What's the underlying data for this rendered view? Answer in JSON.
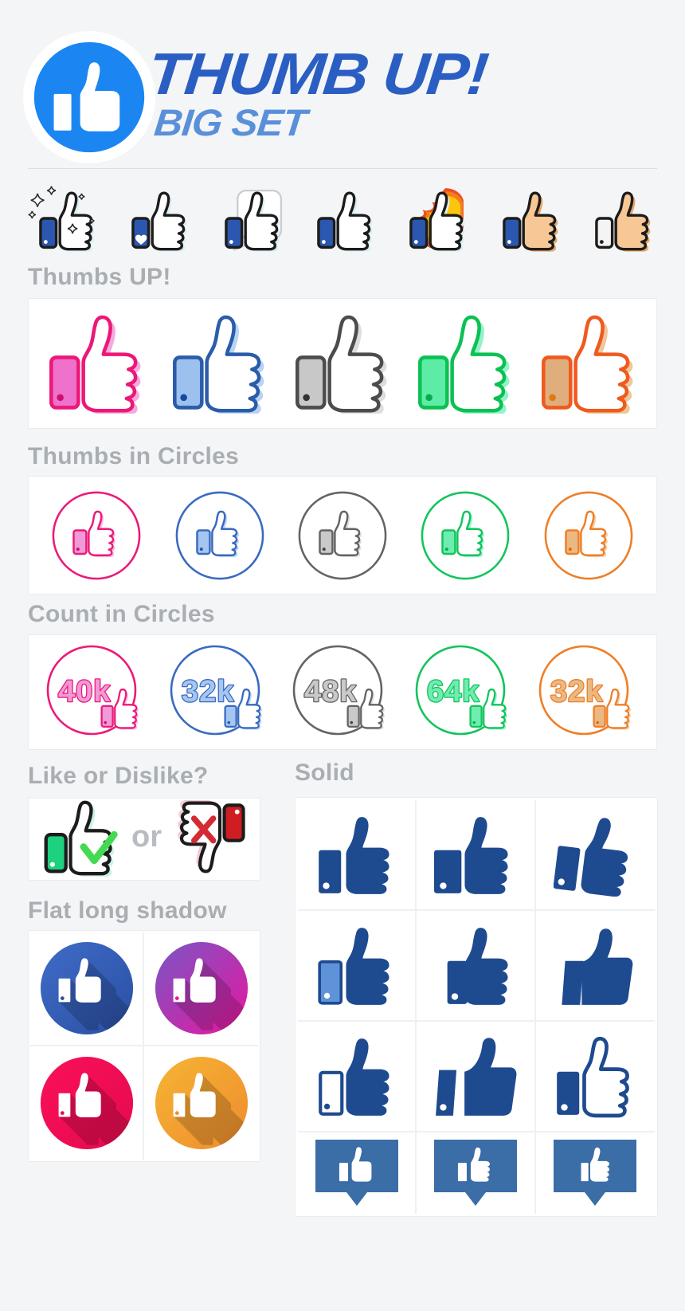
{
  "page": {
    "background": "#f4f5f6"
  },
  "header": {
    "title": "THUMB UP!",
    "subtitle": "BIG SET",
    "colors": {
      "logo_ring": "#ffffff",
      "logo_circle": "#1b86f2",
      "title": "#2b5ec3",
      "subtitle": "#5a90da"
    }
  },
  "style_teaser": {
    "items": [
      {
        "name": "sparkles-thumb"
      },
      {
        "name": "heart-cuff-thumb"
      },
      {
        "name": "speech-bubble-thumb"
      },
      {
        "name": "classic-thumb"
      },
      {
        "name": "fire-thumb"
      },
      {
        "name": "skin-blue-cuff-thumb"
      },
      {
        "name": "skin-white-cuff-thumb"
      }
    ],
    "colors": {
      "outline": "#1c1c1c",
      "hand": "#ffffff",
      "shade": "#d9eef3",
      "cuff_blue": "#2b57b0",
      "cuff_white": "#f4f4f4",
      "skin": "#f7c795",
      "skin_shade": "#e8a76c",
      "dot_light": "#ffffff",
      "dot_dark": "#222222",
      "fire_red": "#ee4e1e",
      "fire_orange": "#f57c1f",
      "fire_yellow": "#fdc60b",
      "speech_outline": "#c8cdd3",
      "sparkle_outline": "#2b2b2b"
    }
  },
  "sections": {
    "thumbs_up": {
      "title": "Thumbs UP!",
      "items": [
        {
          "name": "pink",
          "main": "#ec1878",
          "cuff": "#ee72cc",
          "dot": "#cf0f6f",
          "shade": "#f5aade"
        },
        {
          "name": "blue",
          "main": "#2a5caa",
          "cuff": "#9cc1ee",
          "dot": "#17489e",
          "shade": "#b8d4f4"
        },
        {
          "name": "gray",
          "main": "#4c4c4c",
          "cuff": "#c8c8c8",
          "dot": "#333333",
          "shade": "#dddddd"
        },
        {
          "name": "green",
          "main": "#0bc153",
          "cuff": "#5deca5",
          "dot": "#09aa49",
          "shade": "#93f2c8"
        },
        {
          "name": "orange",
          "main": "#ef5a1f",
          "cuff": "#e0ae7c",
          "dot": "#e27613",
          "shade": "#edc89c"
        }
      ]
    },
    "thumbs_in_circles": {
      "title": "Thumbs in Circles",
      "items": [
        {
          "name": "pink",
          "main": "#ec1a78",
          "cuff": "#f09ad8",
          "dot": "#cf0f6f",
          "shade": "#f5bce5"
        },
        {
          "name": "blue",
          "main": "#3a6ac0",
          "cuff": "#a5c6f0",
          "dot": "#2a55a8",
          "shade": "#bdd6f5"
        },
        {
          "name": "gray",
          "main": "#646464",
          "cuff": "#c9c9c9",
          "dot": "#444444",
          "shade": "#dedede"
        },
        {
          "name": "green",
          "main": "#12c45c",
          "cuff": "#6fedb1",
          "dot": "#0da94e",
          "shade": "#9cf4cf"
        },
        {
          "name": "orange",
          "main": "#ef7e27",
          "cuff": "#eab983",
          "dot": "#d96a14",
          "shade": "#f2d2a8"
        }
      ]
    },
    "count_in_circles": {
      "title": "Count in Circles",
      "items": [
        {
          "count": "40k",
          "name": "pink",
          "main": "#ec1a78",
          "cuff": "#f09ad8",
          "dot": "#cf0f6f",
          "shade": "#f5bce5"
        },
        {
          "count": "32k",
          "name": "blue",
          "main": "#3a6ac0",
          "cuff": "#a5c6f0",
          "dot": "#2a55a8",
          "shade": "#bdd6f5"
        },
        {
          "count": "48k",
          "name": "gray",
          "main": "#646464",
          "cuff": "#c9c9c9",
          "dot": "#444444",
          "shade": "#dedede"
        },
        {
          "count": "64k",
          "name": "green",
          "main": "#12c45c",
          "cuff": "#6fedb1",
          "dot": "#0da94e",
          "shade": "#9cf4cf"
        },
        {
          "count": "32k",
          "name": "orange",
          "main": "#ef7e27",
          "cuff": "#eab983",
          "dot": "#d96a14",
          "shade": "#f2d2a8"
        }
      ]
    },
    "like_or_dislike": {
      "title": "Like or Dislike?",
      "separator": "or",
      "like": {
        "cuff": "#1ed17e",
        "dot": "#ffffff",
        "check": "#43da52",
        "shade": "#c9f3e4"
      },
      "dislike": {
        "cuff": "#cf1d22",
        "dot": "#ffffff",
        "cross": "#d42b33",
        "shade": "#f3ccd3"
      }
    },
    "solid": {
      "title": "Solid",
      "color": "#1e4a8f",
      "light_cuff": "#5e93d9",
      "badge_color": "#3b6da7",
      "variants": [
        {
          "name": "classic"
        },
        {
          "name": "wide-cuff"
        },
        {
          "name": "tilted"
        },
        {
          "name": "light-cuff"
        },
        {
          "name": "merged"
        },
        {
          "name": "flat-angled"
        },
        {
          "name": "outline-cuff"
        },
        {
          "name": "flat-angled-dot"
        },
        {
          "name": "outline-hand"
        },
        {
          "name": "badge-smooth"
        },
        {
          "name": "badge-scalloped"
        },
        {
          "name": "badge-compact"
        }
      ]
    },
    "flat_long_shadow": {
      "title": "Flat long shadow",
      "items": [
        {
          "name": "blue",
          "from": "#3f6cc7",
          "to": "#2a4fa3"
        },
        {
          "name": "purple-magenta",
          "from": "#7857c5",
          "to": "#e8169f"
        },
        {
          "name": "crimson",
          "from": "#fa1059",
          "to": "#e40a4e"
        },
        {
          "name": "orange",
          "from": "#f6b434",
          "to": "#ee8c2e"
        }
      ]
    }
  }
}
